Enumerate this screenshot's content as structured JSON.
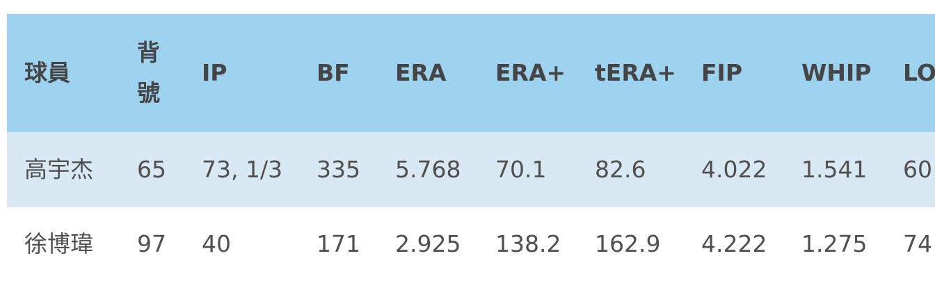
{
  "table": {
    "header": [
      "球員",
      "背號",
      "IP",
      "BF",
      "ERA",
      "ERA+",
      "tERA+",
      "FIP",
      "WHIP",
      "LO"
    ],
    "rows": [
      [
        "高宇杰",
        "65",
        "73, 1/3",
        "335",
        "5.768",
        "70.1",
        "82.6",
        "4.022",
        "1.541",
        "60"
      ],
      [
        "徐博瑋",
        "97",
        "40",
        "171",
        "2.925",
        "138.2",
        "162.9",
        "4.222",
        "1.275",
        "74"
      ]
    ]
  }
}
